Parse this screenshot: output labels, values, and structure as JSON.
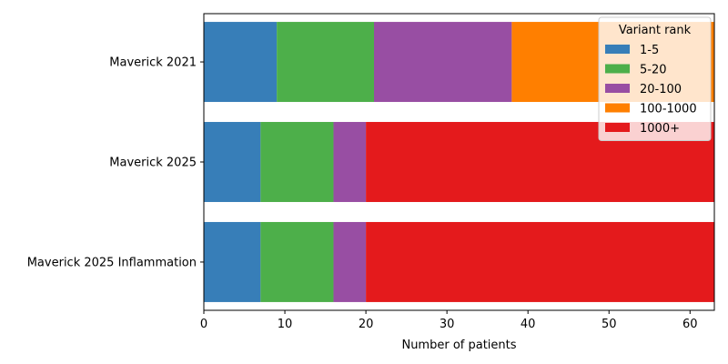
{
  "chart_data": {
    "type": "bar",
    "orientation": "horizontal",
    "stacked": true,
    "categories": [
      "Maverick 2021",
      "Maverick 2025",
      "Maverick 2025 Inflammation"
    ],
    "series": [
      {
        "name": "1-5",
        "color": "#377eb8",
        "values": [
          9,
          7,
          7
        ]
      },
      {
        "name": "5-20",
        "color": "#4daf4a",
        "values": [
          12,
          9,
          9
        ]
      },
      {
        "name": "20-100",
        "color": "#984ea3",
        "values": [
          17,
          4,
          4
        ]
      },
      {
        "name": "100-1000",
        "color": "#ff7f00",
        "values": [
          25,
          0,
          0
        ]
      },
      {
        "name": "1000+",
        "color": "#e41a1c",
        "values": [
          0,
          43,
          43
        ]
      }
    ],
    "xlabel": "Number of patients",
    "ylabel": "",
    "xlim": [
      0,
      63
    ],
    "xticks": [
      0,
      10,
      20,
      30,
      40,
      50,
      60
    ],
    "legend": {
      "title": "Variant rank",
      "placement": "top-right"
    },
    "grid": false
  }
}
